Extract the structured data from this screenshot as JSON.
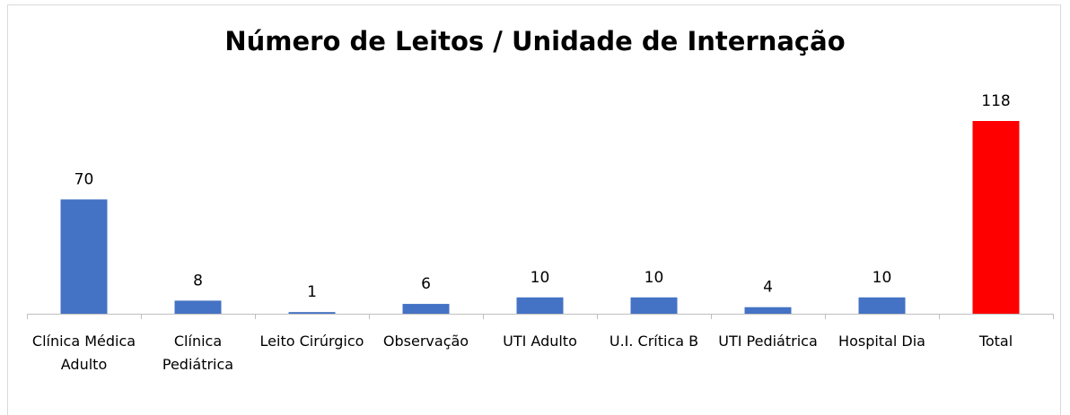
{
  "chart_data": {
    "type": "bar",
    "title": "Número de Leitos / Unidade de Internação",
    "categories": [
      "Clínica Médica Adulto",
      "Clínica Pediátrica",
      "Leito Cirúrgico",
      "Observação",
      "UTI Adulto",
      "U.I. Crítica B",
      "UTI Pediátrica",
      "Hospital Dia",
      "Total"
    ],
    "values": [
      70,
      8,
      1,
      6,
      10,
      10,
      4,
      10,
      118
    ],
    "colors": [
      "#4472c4",
      "#4472c4",
      "#4472c4",
      "#4472c4",
      "#4472c4",
      "#4472c4",
      "#4472c4",
      "#4472c4",
      "#ff0000"
    ]
  }
}
